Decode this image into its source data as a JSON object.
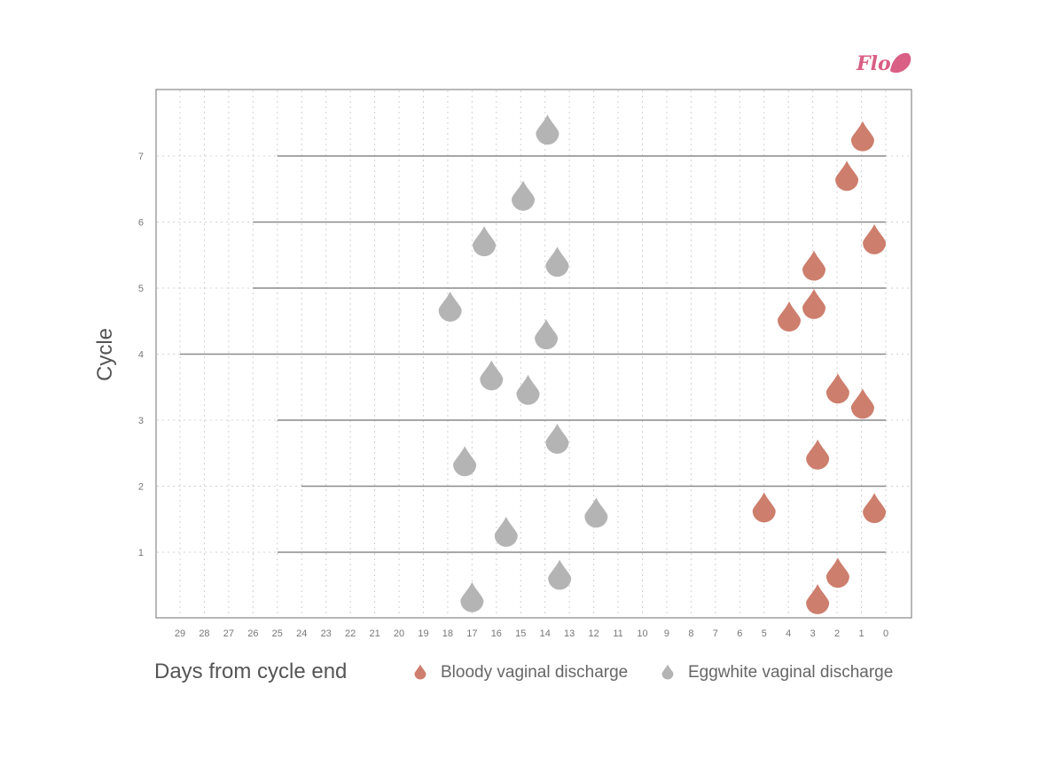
{
  "brand": {
    "logo_text": "Flo",
    "color": "#d95f85"
  },
  "chart_data": {
    "type": "scatter",
    "title": "",
    "xlabel": "Days from cycle end",
    "ylabel": "Cycle",
    "xlim": [
      29,
      0
    ],
    "ylim": [
      0,
      8
    ],
    "x_ticks": [
      29,
      28,
      27,
      26,
      25,
      24,
      23,
      22,
      21,
      20,
      19,
      18,
      17,
      16,
      15,
      14,
      13,
      12,
      11,
      10,
      9,
      8,
      7,
      6,
      5,
      4,
      3,
      2,
      1,
      0
    ],
    "y_ticks": [
      1,
      2,
      3,
      4,
      5,
      6,
      7
    ],
    "grid": true,
    "legend_position": "bottom",
    "cycles": [
      {
        "cycle": 1,
        "start_day": 25
      },
      {
        "cycle": 2,
        "start_day": 24
      },
      {
        "cycle": 3,
        "start_day": 25
      },
      {
        "cycle": 4,
        "start_day": 29
      },
      {
        "cycle": 5,
        "start_day": 26
      },
      {
        "cycle": 6,
        "start_day": 26
      },
      {
        "cycle": 7,
        "start_day": 25
      }
    ],
    "series": [
      {
        "name": "Bloody vaginal discharge",
        "color": "#cd7e6d",
        "points": [
          [
            0.95,
            7.3
          ],
          [
            1.6,
            6.7
          ],
          [
            0.47,
            5.74
          ],
          [
            2.95,
            5.34
          ],
          [
            2.95,
            4.76
          ],
          [
            3.97,
            4.57
          ],
          [
            1.97,
            3.48
          ],
          [
            0.95,
            3.25
          ],
          [
            2.8,
            2.48
          ],
          [
            5.0,
            1.68
          ],
          [
            0.47,
            1.67
          ],
          [
            1.97,
            0.69
          ],
          [
            2.8,
            0.29
          ]
        ]
      },
      {
        "name": "Eggwhite vaginal discharge",
        "color": "#b4b4b4",
        "points": [
          [
            13.9,
            7.4
          ],
          [
            14.9,
            6.4
          ],
          [
            16.5,
            5.71
          ],
          [
            13.5,
            5.4
          ],
          [
            17.9,
            4.72
          ],
          [
            13.95,
            4.3
          ],
          [
            16.2,
            3.68
          ],
          [
            14.7,
            3.46
          ],
          [
            13.5,
            2.72
          ],
          [
            17.3,
            2.38
          ],
          [
            11.9,
            1.6
          ],
          [
            15.6,
            1.31
          ],
          [
            13.4,
            0.66
          ],
          [
            17.0,
            0.32
          ]
        ]
      }
    ]
  }
}
